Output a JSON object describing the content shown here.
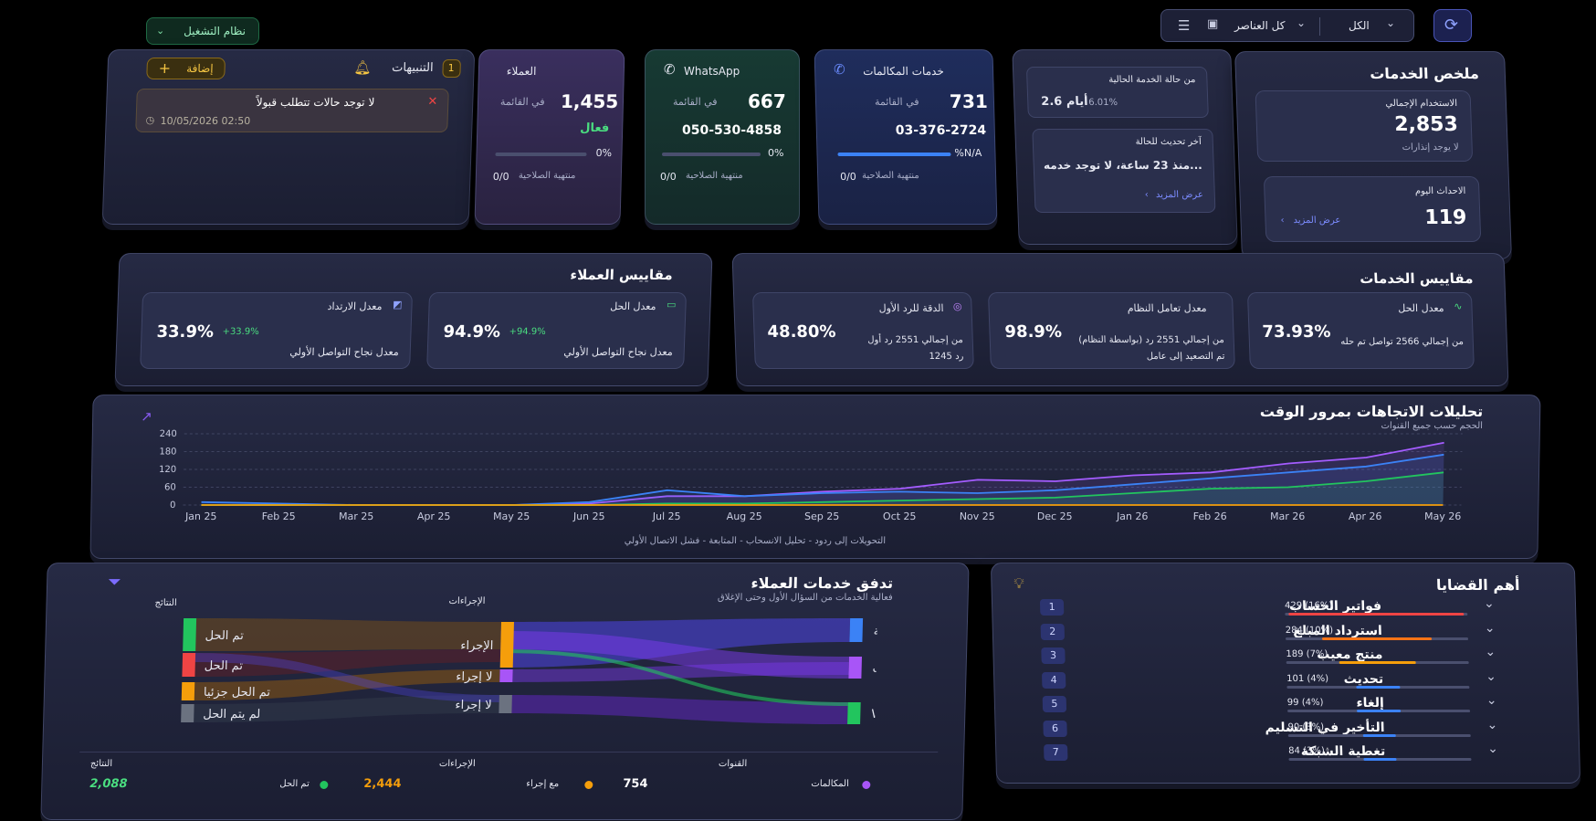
{
  "topbar": {
    "os_button": "نظام التشغيل",
    "filter_all": "الكل",
    "filter_items": "كل العناصر"
  },
  "alerts": {
    "title": "التنبيهات",
    "count": "1",
    "add_label": "إضافة",
    "message": "لا توجد حالات تتطلب قبولاً",
    "timestamp": "10/05/2026 02:50"
  },
  "customers_card": {
    "title": "العملاء",
    "in_list_label": "في القائمة",
    "value": "1,455",
    "status": "فعال",
    "progress_label": "0%",
    "progress": 0,
    "expired_label": "منتهية الصلاحية",
    "expired_value": "0/0"
  },
  "whatsapp_card": {
    "title": "WhatsApp",
    "in_list_label": "في القائمة",
    "value": "667",
    "phone": "050-530-4858",
    "progress_label": "0%",
    "progress": 0,
    "expired_label": "منتهية الصلاحية",
    "expired_value": "0/0"
  },
  "calls_card": {
    "title": "خدمات المكالمات",
    "in_list_label": "في القائمة",
    "value": "731",
    "phone": "03-376-2724",
    "progress_label": "%N/A",
    "progress": 1,
    "expired_label": "منتهية الصلاحية",
    "expired_value": "0/0"
  },
  "status_card": {
    "current_label": "من حالة الخدمة الحالية",
    "current_value": "2.6 أيام",
    "current_pct": "6.01%",
    "update_label": "آخر تحديث للحالة",
    "update_value": "منذ 23 ساعة، لا توجد خدمه...",
    "more_label": "عرض المزيد"
  },
  "summary": {
    "title": "ملخص الخدمات",
    "total_label": "الاستخدام الإجمالي",
    "total_value": "2,853",
    "total_sub": "لا يوجد إنذارات",
    "today_label": "الاحداث اليوم",
    "today_value": "119",
    "more_label": "عرض المزيد"
  },
  "customer_metrics": {
    "title": "مقاييس العملاء",
    "items": [
      {
        "label": "معدل الحل",
        "value": "94.9%",
        "delta": "+94.9%",
        "sub": "معدل نجاح التواصل الأولي"
      },
      {
        "label": "معدل الارتداد",
        "value": "33.9%",
        "delta": "+33.9%",
        "sub": "معدل نجاح التواصل الأولي"
      }
    ]
  },
  "service_metrics": {
    "title": "مقاييس الخدمات",
    "items": [
      {
        "label": "معدل الحل",
        "value": "73.93%",
        "sub1": "من إجمالي 2566 تواصل تم حله",
        "sub2": ""
      },
      {
        "label": "معدل تعامل النظام",
        "value": "98.9%",
        "sub1": "من إجمالي 2551 رد (بواسطة النظام)",
        "sub2": "تم التصعيد إلى عامل"
      },
      {
        "label": "الدقة للرد الأول",
        "value": "48.80%",
        "sub1": "من إجمالي 2551 رد أول",
        "sub2": "1245 رد"
      }
    ]
  },
  "trends": {
    "title": "تحليلات الاتجاهات بمرور الوقت",
    "subtitle": "الحجم حسب جميع القنوات",
    "caption": "التحويلات إلى ردود - تحليل الانسحاب - المتابعة - فشل الاتصال الأولي",
    "chart_data": {
      "type": "line",
      "categories": [
        "Jan 25",
        "Feb 25",
        "Mar 25",
        "Apr 25",
        "May 25",
        "Jun 25",
        "Jul 25",
        "Aug 25",
        "Sep 25",
        "Oct 25",
        "Nov 25",
        "Dec 25",
        "Jan 26",
        "Feb 26",
        "Mar 26",
        "Apr 26",
        "May 26"
      ],
      "ylim": [
        0,
        240
      ],
      "yticks": [
        "0",
        "60",
        "120",
        "180",
        "240"
      ],
      "series": [
        {
          "color": "#a45cff",
          "values": [
            0,
            0,
            0,
            0,
            0,
            5,
            30,
            30,
            45,
            55,
            85,
            80,
            100,
            110,
            140,
            160,
            210
          ]
        },
        {
          "color": "#3b82f6",
          "values": [
            10,
            5,
            0,
            0,
            0,
            10,
            50,
            30,
            40,
            45,
            40,
            50,
            70,
            90,
            110,
            130,
            170
          ]
        },
        {
          "color": "#22c55e",
          "values": [
            0,
            0,
            0,
            0,
            0,
            0,
            5,
            5,
            10,
            15,
            20,
            25,
            40,
            55,
            60,
            80,
            110
          ]
        },
        {
          "color": "#f59e0b",
          "values": [
            0,
            0,
            0,
            0,
            0,
            0,
            0,
            0,
            0,
            0,
            0,
            0,
            0,
            0,
            0,
            0,
            0
          ]
        }
      ]
    }
  },
  "flow": {
    "title": "تدفق خدمات العملاء",
    "subtitle": "فعالية الخدمات من السؤال الأول وحتى الإغلاق",
    "col_results": "النتائج",
    "col_actions": "الإجراءات",
    "results": [
      "تم الحل",
      "تم الحل",
      "تم الحل جزئيا",
      "لم يتم الحل"
    ],
    "actions": [
      "الإجراء",
      "لا إجراء",
      "لا إجراء"
    ],
    "channels": [
      "دردشة",
      "مكالمات",
      "WhatsApp"
    ],
    "footer": {
      "results_label": "النتائج",
      "results_value": "2,088",
      "results_legend": "تم الحل",
      "actions_label": "الإجراءات",
      "actions_value": "2,444",
      "actions_legend": "مع إجراء",
      "channels_label": "القنوات",
      "channels_value": "754",
      "channels_legend": "المكالمات"
    }
  },
  "issues": {
    "title": "أهم القضايا",
    "items": [
      {
        "rank": "1",
        "name": "فواتير الحساب",
        "stat": "429 (16%)",
        "pct": 16,
        "color": "#ef4444"
      },
      {
        "rank": "2",
        "name": "استرداد المبلغ",
        "stat": "284 (10%)",
        "pct": 10,
        "color": "#f97316"
      },
      {
        "rank": "3",
        "name": "منتج معيب",
        "stat": "189 (7%)",
        "pct": 7,
        "color": "#f59e0b"
      },
      {
        "rank": "4",
        "name": "تحديث",
        "stat": "101 (4%)",
        "pct": 4,
        "color": "#3b82f6"
      },
      {
        "rank": "5",
        "name": "إلغاء",
        "stat": "99 (4%)",
        "pct": 4,
        "color": "#3b82f6"
      },
      {
        "rank": "6",
        "name": "التأخير في التسليم",
        "stat": "90 (3%)",
        "pct": 3,
        "color": "#3b82f6"
      },
      {
        "rank": "7",
        "name": "تغطية الشبكة",
        "stat": "84 (3%)",
        "pct": 3,
        "color": "#3b82f6"
      }
    ]
  }
}
